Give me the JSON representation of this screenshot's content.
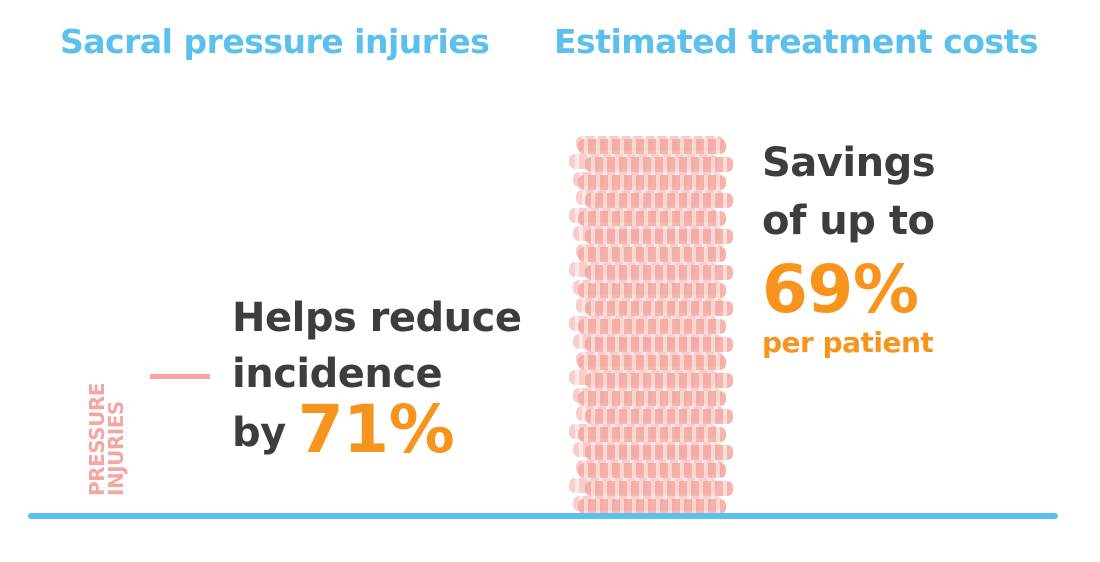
{
  "headings": {
    "left": "Sacral pressure injuries",
    "right": "Estimated treatment costs"
  },
  "axis_label": {
    "line1": "PRESSURE",
    "line2": "INJURIES"
  },
  "left_claim": {
    "line1": "Helps reduce",
    "line2": "incidence",
    "by": "by",
    "value": "71%"
  },
  "right_claim": {
    "line1": "Savings",
    "line2": "of up to",
    "value": "69%",
    "per": "per patient"
  },
  "colors": {
    "heading": "#5bc0eb",
    "accent": "#f7941d",
    "text": "#3d3d3d",
    "stack": "#f4a7a0",
    "baseline": "#5bc0eb"
  }
}
